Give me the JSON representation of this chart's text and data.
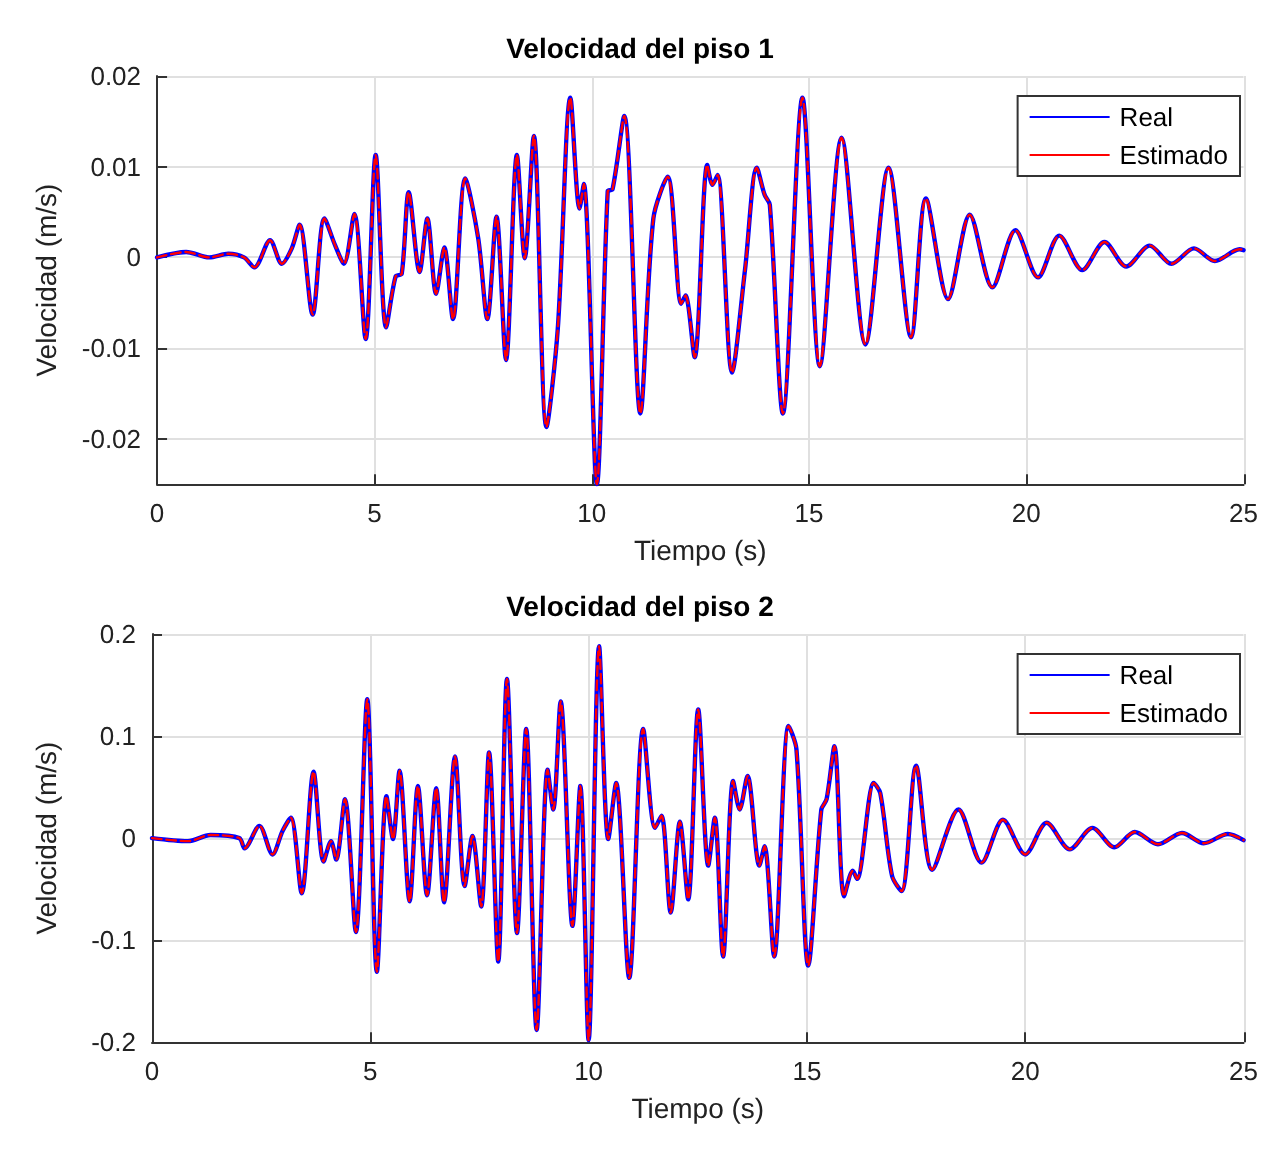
{
  "chart_data": [
    {
      "type": "line",
      "title": "Velocidad del piso 1",
      "xlabel": "Tiempo (s)",
      "ylabel": "Velocidad (m/s)",
      "x": [
        0,
        0.67,
        1.2,
        1.64,
        2.0,
        2.24,
        2.6,
        2.87,
        3.1,
        3.28,
        3.58,
        3.85,
        4.1,
        4.3,
        4.54,
        4.8,
        5.03,
        5.27,
        5.49,
        5.63,
        5.79,
        6.04,
        6.22,
        6.42,
        6.61,
        6.81,
        7.09,
        7.39,
        7.6,
        7.81,
        8.03,
        8.28,
        8.46,
        8.67,
        8.96,
        9.22,
        9.51,
        9.72,
        9.82,
        10.12,
        10.37,
        10.48,
        10.75,
        11.12,
        11.42,
        11.75,
        12.06,
        12.16,
        12.37,
        12.66,
        12.78,
        12.9,
        13.23,
        13.53,
        13.8,
        13.98,
        14.1,
        14.4,
        14.85,
        15.25,
        15.75,
        16.3,
        16.83,
        17.35,
        17.69,
        18.2,
        18.7,
        19.22,
        19.75,
        20.27,
        20.76,
        21.29,
        21.8,
        22.3,
        22.84,
        23.34,
        23.86,
        24.34,
        24.91,
        25
      ],
      "series": [
        {
          "name": "Real",
          "color": "#0000ff",
          "line_style": "solid",
          "values": [
            0,
            0.0006,
            0,
            0.0004,
            0,
            -0.0011,
            0.0019,
            -0.0007,
            0.001,
            0.0036,
            -0.0063,
            0.0043,
            0.0013,
            -0.0007,
            0.0048,
            -0.009,
            0.0113,
            -0.0077,
            -0.0021,
            -0.0018,
            0.0072,
            -0.0016,
            0.0043,
            -0.004,
            0.0011,
            -0.0068,
            0.0087,
            0.0021,
            -0.0068,
            0.0045,
            -0.0113,
            0.0113,
            -0.0001,
            0.0134,
            -0.0187,
            -0.0079,
            0.0176,
            0.0054,
            0.0081,
            -0.025,
            0.0073,
            0.0075,
            0.0156,
            -0.0172,
            0.0043,
            0.0089,
            -0.0051,
            -0.0042,
            -0.011,
            0.0102,
            0.008,
            0.0091,
            -0.0127,
            -0.0013,
            0.0099,
            0.0069,
            0.0058,
            -0.0172,
            0.0176,
            -0.012,
            0.0132,
            -0.0096,
            0.0099,
            -0.0088,
            0.0065,
            -0.0046,
            0.0047,
            -0.0033,
            0.003,
            -0.0022,
            0.0024,
            -0.0014,
            0.0017,
            -0.001,
            0.0013,
            -0.0007,
            0.001,
            -0.0004,
            0.0009,
            0.0008
          ]
        },
        {
          "name": "Estimado",
          "color": "#ff0000",
          "line_style": "dashed",
          "values": [
            0,
            0.0006,
            0,
            0.0004,
            0,
            -0.0011,
            0.0019,
            -0.0007,
            0.001,
            0.0036,
            -0.0063,
            0.0043,
            0.0013,
            -0.0007,
            0.0048,
            -0.009,
            0.0113,
            -0.0077,
            -0.0021,
            -0.0018,
            0.0072,
            -0.0016,
            0.0043,
            -0.004,
            0.0011,
            -0.0068,
            0.0087,
            0.0021,
            -0.0068,
            0.0045,
            -0.0113,
            0.0113,
            -0.0001,
            0.0134,
            -0.0187,
            -0.0079,
            0.0176,
            0.0054,
            0.0081,
            -0.025,
            0.0073,
            0.0075,
            0.0156,
            -0.0172,
            0.0043,
            0.0089,
            -0.0051,
            -0.0042,
            -0.011,
            0.0102,
            0.008,
            0.0091,
            -0.0127,
            -0.0013,
            0.0099,
            0.0069,
            0.0058,
            -0.0172,
            0.0176,
            -0.012,
            0.0132,
            -0.0096,
            0.0099,
            -0.0088,
            0.0065,
            -0.0046,
            0.0047,
            -0.0033,
            0.003,
            -0.0022,
            0.0024,
            -0.0014,
            0.0017,
            -0.001,
            0.0013,
            -0.0007,
            0.001,
            -0.0004,
            0.0009,
            0.0008
          ]
        }
      ],
      "xlim": [
        0,
        25
      ],
      "xticks": [
        0,
        5,
        10,
        15,
        20,
        25
      ],
      "ylim": [
        -0.025,
        0.02
      ],
      "yticks": [
        -0.02,
        -0.01,
        0,
        0.01,
        0.02
      ],
      "grid": true,
      "legend": "top right",
      "marker": "none"
    },
    {
      "type": "line",
      "title": "Velocidad del piso 2",
      "xlabel": "Tiempo (s)",
      "ylabel": "Velocidad (m/s)",
      "x": [
        0,
        0.82,
        1.34,
        2.0,
        2.12,
        2.46,
        2.76,
        2.99,
        3.18,
        3.43,
        3.7,
        3.93,
        4.1,
        4.22,
        4.42,
        4.67,
        4.93,
        5.15,
        5.37,
        5.52,
        5.67,
        5.9,
        6.09,
        6.3,
        6.51,
        6.69,
        6.94,
        7.16,
        7.34,
        7.54,
        7.72,
        7.93,
        8.13,
        8.36,
        8.57,
        8.81,
        9.06,
        9.19,
        9.36,
        9.63,
        9.81,
        10.0,
        10.24,
        10.45,
        10.63,
        10.93,
        11.25,
        11.52,
        11.67,
        11.88,
        12.09,
        12.28,
        12.51,
        12.74,
        12.89,
        13.08,
        13.31,
        13.46,
        13.64,
        13.91,
        14.03,
        14.25,
        14.58,
        14.76,
        15.03,
        15.33,
        15.45,
        15.63,
        15.85,
        16.05,
        16.15,
        16.53,
        16.68,
        16.95,
        17.17,
        17.5,
        17.87,
        18.47,
        19.0,
        19.49,
        20.0,
        20.49,
        21.02,
        21.54,
        22.04,
        22.51,
        23.04,
        23.59,
        24.09,
        24.64,
        25
      ],
      "series": [
        {
          "name": "Real",
          "color": "#0000ff",
          "line_style": "solid",
          "values": [
            0,
            -0.003,
            0.003,
            0,
            -0.01,
            0.012,
            -0.016,
            0.007,
            0.02,
            -0.054,
            0.065,
            -0.023,
            -0.003,
            -0.021,
            0.038,
            -0.092,
            0.136,
            -0.131,
            0.041,
            -0.001,
            0.066,
            -0.062,
            0.051,
            -0.056,
            0.049,
            -0.063,
            0.08,
            -0.047,
            0.002,
            -0.067,
            0.084,
            -0.121,
            0.156,
            -0.093,
            0.107,
            -0.188,
            0.067,
            0.028,
            0.134,
            -0.086,
            0.051,
            -0.198,
            0.188,
            -0.001,
            0.054,
            -0.137,
            0.107,
            0.01,
            0.022,
            -0.073,
            0.016,
            -0.06,
            0.126,
            -0.027,
            0.02,
            -0.116,
            0.056,
            0.028,
            0.061,
            -0.027,
            -0.008,
            -0.116,
            0.11,
            0.087,
            -0.125,
            0.028,
            0.038,
            0.09,
            -0.057,
            -0.032,
            -0.04,
            0.054,
            0.044,
            -0.037,
            -0.052,
            0.071,
            -0.031,
            0.028,
            -0.024,
            0.018,
            -0.016,
            0.015,
            -0.011,
            0.01,
            -0.009,
            0.006,
            -0.006,
            0.005,
            -0.005,
            0.004,
            -0.002
          ]
        },
        {
          "name": "Estimado",
          "color": "#ff0000",
          "line_style": "dashed",
          "values": [
            0,
            -0.003,
            0.003,
            0,
            -0.01,
            0.012,
            -0.016,
            0.007,
            0.02,
            -0.054,
            0.065,
            -0.023,
            -0.003,
            -0.021,
            0.038,
            -0.092,
            0.136,
            -0.131,
            0.041,
            -0.001,
            0.066,
            -0.062,
            0.051,
            -0.056,
            0.049,
            -0.063,
            0.08,
            -0.047,
            0.002,
            -0.067,
            0.084,
            -0.121,
            0.156,
            -0.093,
            0.107,
            -0.188,
            0.067,
            0.028,
            0.134,
            -0.086,
            0.051,
            -0.198,
            0.188,
            -0.001,
            0.054,
            -0.137,
            0.107,
            0.01,
            0.022,
            -0.073,
            0.016,
            -0.06,
            0.126,
            -0.027,
            0.02,
            -0.116,
            0.056,
            0.028,
            0.061,
            -0.027,
            -0.008,
            -0.116,
            0.11,
            0.087,
            -0.125,
            0.028,
            0.038,
            0.09,
            -0.057,
            -0.032,
            -0.04,
            0.054,
            0.044,
            -0.037,
            -0.052,
            0.071,
            -0.031,
            0.028,
            -0.024,
            0.018,
            -0.016,
            0.015,
            -0.011,
            0.01,
            -0.009,
            0.006,
            -0.006,
            0.005,
            -0.005,
            0.004,
            -0.002
          ]
        }
      ],
      "xlim": [
        0,
        25
      ],
      "xticks": [
        0,
        5,
        10,
        15,
        20,
        25
      ],
      "ylim": [
        -0.2,
        0.2
      ],
      "yticks": [
        -0.2,
        -0.1,
        0,
        0.1,
        0.2
      ],
      "grid": true,
      "legend": "top right",
      "marker": "none"
    }
  ]
}
